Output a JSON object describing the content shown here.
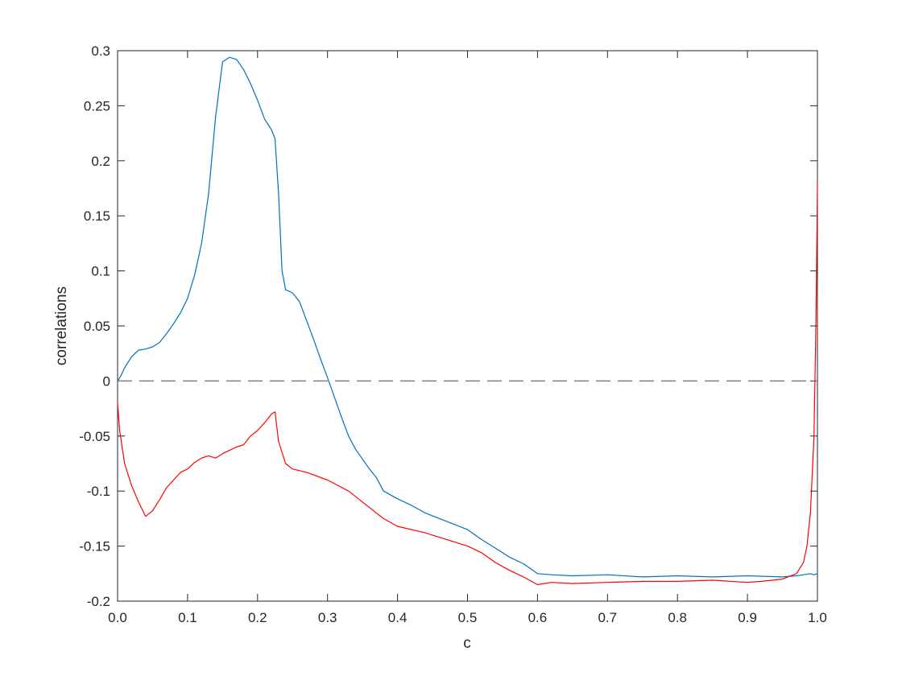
{
  "chart_data": {
    "type": "line",
    "title": "",
    "xlabel": "c",
    "ylabel": "correlations",
    "xlim": [
      0,
      1
    ],
    "ylim": [
      -0.2,
      0.3
    ],
    "xticks": [
      0,
      0.1,
      0.2,
      0.3,
      0.4,
      0.5,
      0.6,
      0.7,
      0.8,
      0.9,
      1.0
    ],
    "xtick_labels": [
      "0.0",
      "0.1",
      "0.2",
      "0.3",
      "0.4",
      "0.5",
      "0.6",
      "0.7",
      "0.8",
      "0.9",
      "1.0"
    ],
    "yticks": [
      -0.2,
      -0.15,
      -0.1,
      -0.05,
      0,
      0.05,
      0.1,
      0.15,
      0.2,
      0.25,
      0.3
    ],
    "ytick_labels": [
      "-0.2",
      "-0.15",
      "-0.1",
      "-0.05",
      "0",
      "0.05",
      "0.1",
      "0.15",
      "0.2",
      "0.25",
      "0.3"
    ],
    "grid": false,
    "legend": "none",
    "reference_line": {
      "y": 0,
      "style": "dashed",
      "color": "#7f7f7f"
    },
    "series": [
      {
        "color": "#0072bd",
        "x": [
          0.0,
          0.005,
          0.01,
          0.02,
          0.03,
          0.04,
          0.05,
          0.06,
          0.07,
          0.08,
          0.09,
          0.1,
          0.11,
          0.12,
          0.13,
          0.14,
          0.15,
          0.16,
          0.17,
          0.18,
          0.19,
          0.2,
          0.21,
          0.22,
          0.225,
          0.23,
          0.235,
          0.24,
          0.25,
          0.26,
          0.27,
          0.28,
          0.29,
          0.3,
          0.31,
          0.32,
          0.33,
          0.34,
          0.35,
          0.36,
          0.37,
          0.38,
          0.4,
          0.42,
          0.44,
          0.46,
          0.48,
          0.5,
          0.52,
          0.54,
          0.56,
          0.58,
          0.6,
          0.62,
          0.65,
          0.7,
          0.75,
          0.8,
          0.85,
          0.9,
          0.95,
          0.97,
          0.98,
          0.99,
          0.995,
          1.0
        ],
        "y": [
          0.0,
          0.005,
          0.012,
          0.022,
          0.028,
          0.029,
          0.031,
          0.035,
          0.043,
          0.052,
          0.062,
          0.075,
          0.096,
          0.125,
          0.17,
          0.24,
          0.29,
          0.294,
          0.292,
          0.283,
          0.27,
          0.255,
          0.238,
          0.228,
          0.22,
          0.17,
          0.1,
          0.083,
          0.08,
          0.072,
          0.055,
          0.038,
          0.02,
          0.003,
          -0.015,
          -0.033,
          -0.05,
          -0.062,
          -0.071,
          -0.08,
          -0.088,
          -0.1,
          -0.107,
          -0.113,
          -0.12,
          -0.125,
          -0.13,
          -0.135,
          -0.144,
          -0.152,
          -0.16,
          -0.166,
          -0.175,
          -0.176,
          -0.177,
          -0.176,
          -0.178,
          -0.177,
          -0.178,
          -0.177,
          -0.178,
          -0.177,
          -0.176,
          -0.175,
          -0.176,
          -0.175
        ]
      },
      {
        "color": "#ff0000",
        "x": [
          0.0,
          0.003,
          0.01,
          0.02,
          0.03,
          0.04,
          0.05,
          0.06,
          0.07,
          0.08,
          0.09,
          0.1,
          0.11,
          0.12,
          0.13,
          0.14,
          0.15,
          0.16,
          0.17,
          0.18,
          0.19,
          0.2,
          0.21,
          0.22,
          0.225,
          0.23,
          0.24,
          0.25,
          0.27,
          0.3,
          0.33,
          0.36,
          0.38,
          0.4,
          0.42,
          0.44,
          0.46,
          0.48,
          0.5,
          0.52,
          0.54,
          0.56,
          0.58,
          0.6,
          0.62,
          0.65,
          0.7,
          0.75,
          0.8,
          0.85,
          0.9,
          0.92,
          0.95,
          0.97,
          0.98,
          0.985,
          0.99,
          0.995,
          0.998,
          1.0
        ],
        "y": [
          -0.02,
          -0.045,
          -0.075,
          -0.095,
          -0.11,
          -0.123,
          -0.118,
          -0.108,
          -0.097,
          -0.09,
          -0.083,
          -0.08,
          -0.074,
          -0.07,
          -0.068,
          -0.07,
          -0.066,
          -0.063,
          -0.06,
          -0.058,
          -0.05,
          -0.045,
          -0.038,
          -0.03,
          -0.028,
          -0.055,
          -0.075,
          -0.08,
          -0.083,
          -0.09,
          -0.1,
          -0.115,
          -0.125,
          -0.132,
          -0.135,
          -0.138,
          -0.142,
          -0.146,
          -0.15,
          -0.156,
          -0.165,
          -0.172,
          -0.178,
          -0.185,
          -0.183,
          -0.184,
          -0.183,
          -0.182,
          -0.182,
          -0.181,
          -0.183,
          -0.182,
          -0.18,
          -0.175,
          -0.165,
          -0.15,
          -0.12,
          -0.05,
          0.06,
          0.18
        ]
      }
    ]
  }
}
